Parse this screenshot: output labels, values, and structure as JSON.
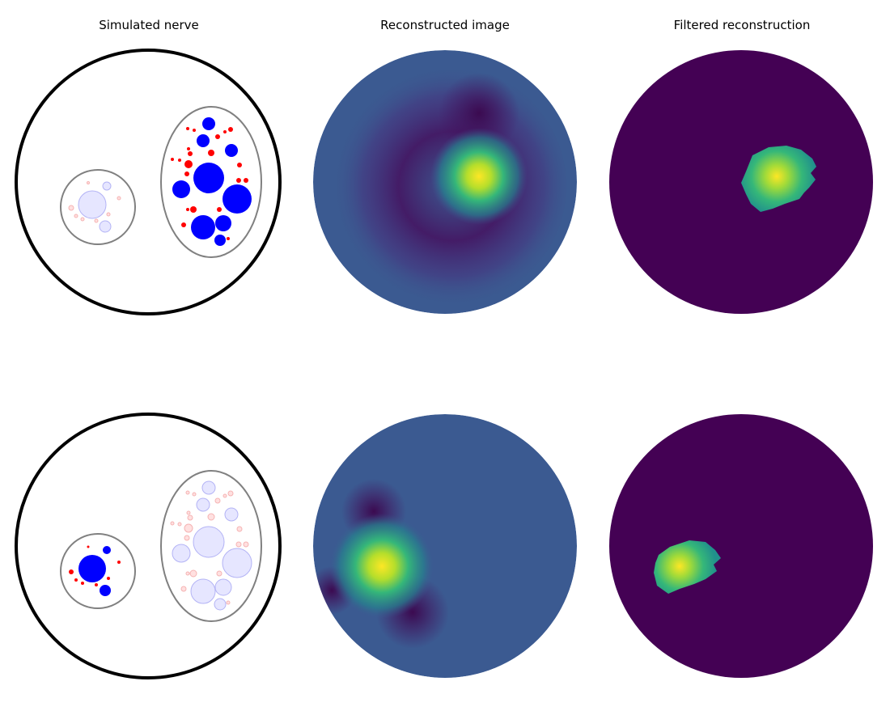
{
  "titles": [
    "Simulated nerve",
    "Reconstructed image",
    "Filtered reconstruction"
  ],
  "colors": {
    "nerve_outline": "#000000",
    "fascicle_outline": "#808080",
    "active_large": "#0000ff",
    "active_small": "#ff0000",
    "inactive_large": "#e6e6ff",
    "inactive_large_edge": "#b3b3f5",
    "inactive_small": "#ffe0e0",
    "inactive_small_edge": "#f5b3b3",
    "viridis_background": "#440154",
    "reconstruction_background": "#3b5a91",
    "reconstruction_negative": "#45115f",
    "reconstruction_mid": "#26878e",
    "reconstruction_high": "#5ec962",
    "reconstruction_peak": "#fde725"
  },
  "rows": [
    {
      "active_fascicle": "right"
    },
    {
      "active_fascicle": "left"
    }
  ]
}
